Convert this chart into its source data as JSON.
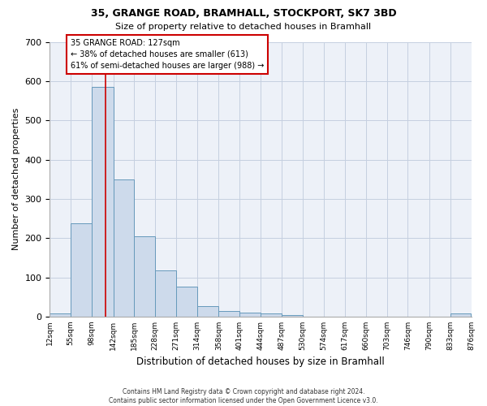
{
  "title_line1": "35, GRANGE ROAD, BRAMHALL, STOCKPORT, SK7 3BD",
  "title_line2": "Size of property relative to detached houses in Bramhall",
  "xlabel": "Distribution of detached houses by size in Bramhall",
  "ylabel": "Number of detached properties",
  "footnote_line1": "Contains HM Land Registry data © Crown copyright and database right 2024.",
  "footnote_line2": "Contains public sector information licensed under the Open Government Licence v3.0.",
  "bin_edges": [
    12,
    55,
    98,
    142,
    185,
    228,
    271,
    314,
    358,
    401,
    444,
    487,
    530,
    574,
    617,
    660,
    703,
    746,
    790,
    833,
    876
  ],
  "bin_counts": [
    8,
    237,
    585,
    350,
    205,
    118,
    76,
    27,
    15,
    10,
    9,
    5,
    0,
    0,
    0,
    0,
    0,
    0,
    0,
    8
  ],
  "bar_facecolor": "#cddaeb",
  "bar_edgecolor": "#6699bb",
  "property_sqm": 127,
  "property_line_color": "#cc0000",
  "annotation_line1": "35 GRANGE ROAD: 127sqm",
  "annotation_line2": "← 38% of detached houses are smaller (613)",
  "annotation_line3": "61% of semi-detached houses are larger (988) →",
  "annotation_box_edgecolor": "#cc0000",
  "ylim": [
    0,
    700
  ],
  "yticks": [
    0,
    100,
    200,
    300,
    400,
    500,
    600,
    700
  ],
  "grid_color": "#c5cfe0",
  "background_color": "#edf1f8",
  "figsize": [
    6.0,
    5.0
  ],
  "dpi": 100
}
